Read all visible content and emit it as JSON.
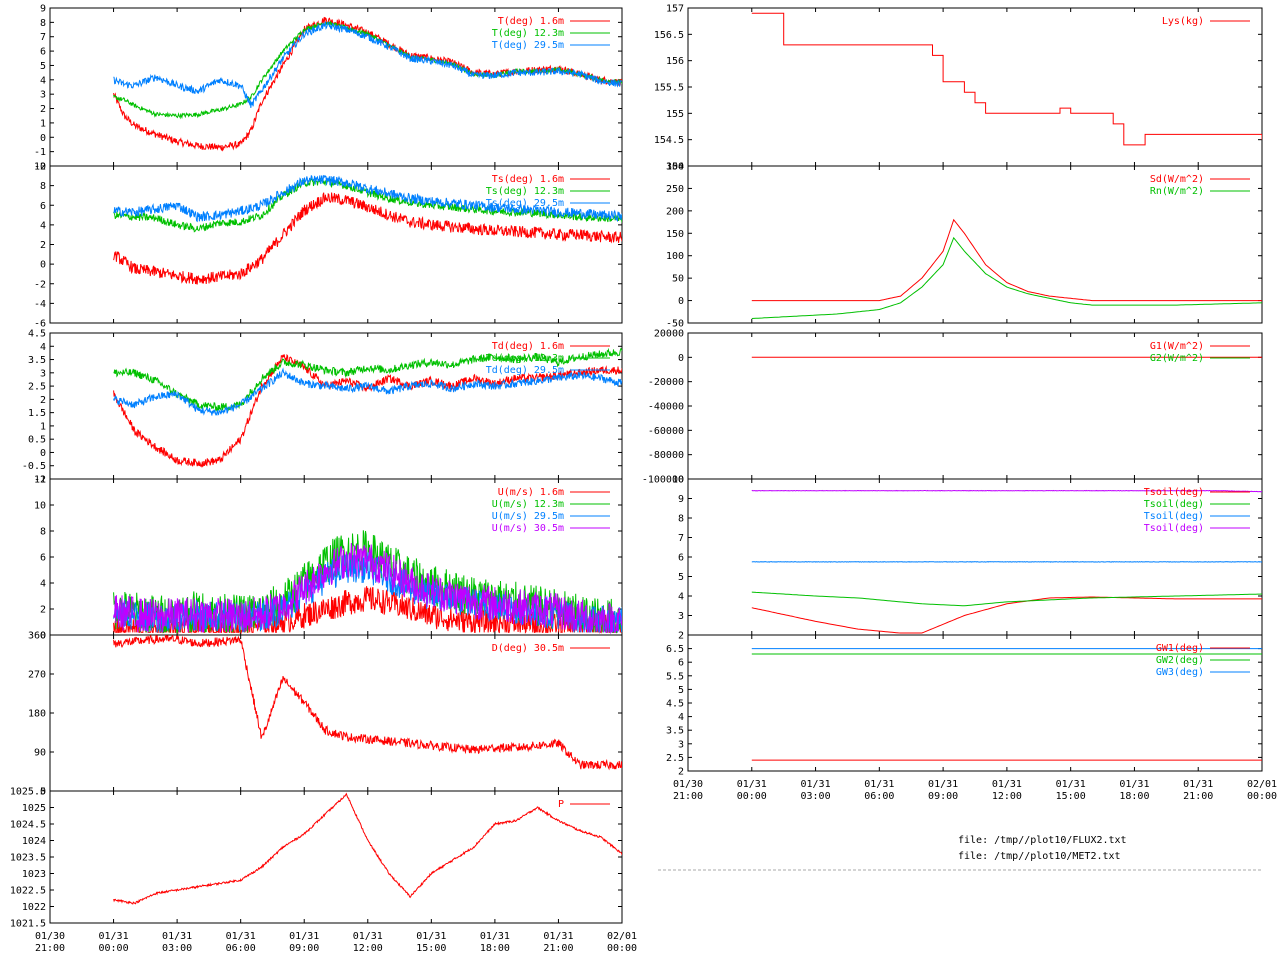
{
  "x_axis": {
    "tick_dates": [
      "01/30",
      "01/31",
      "01/31",
      "01/31",
      "01/31",
      "01/31",
      "01/31",
      "01/31",
      "01/31",
      "02/01"
    ],
    "tick_times": [
      "21:00",
      "00:00",
      "03:00",
      "06:00",
      "09:00",
      "12:00",
      "15:00",
      "18:00",
      "21:00",
      "00:00"
    ]
  },
  "files": [
    "file: /tmp//plot10/FLUX2.txt",
    "file: /tmp//plot10/MET2.txt"
  ],
  "colors": {
    "red": "#ff0000",
    "green": "#00c000",
    "blue": "#0080ff",
    "magenta": "#c000ff"
  },
  "chart_data": [
    {
      "type": "line",
      "name": "T",
      "ylim": [
        -2,
        9
      ],
      "yticks": [
        "-2",
        "-1",
        "0",
        "1",
        "2",
        "3",
        "4",
        "5",
        "6",
        "7",
        "8",
        "9"
      ],
      "legend": [
        "T(deg)  1.6m",
        "T(deg) 12.3m",
        "T(deg) 29.5m"
      ],
      "x_hours": [
        0,
        0.5,
        1,
        2,
        3,
        4,
        5,
        6,
        6.5,
        7,
        8,
        9,
        10,
        11,
        12,
        13,
        14,
        15,
        16,
        17,
        18,
        19,
        20,
        21,
        22,
        23,
        24
      ],
      "series": [
        {
          "color": "red",
          "noise": 0.25,
          "values": [
            3.0,
            1.5,
            0.8,
            0.2,
            -0.3,
            -0.6,
            -0.7,
            -0.5,
            0.5,
            2.5,
            5.0,
            7.5,
            8.2,
            7.8,
            7.3,
            6.5,
            5.7,
            5.5,
            5.2,
            4.5,
            4.4,
            4.6,
            4.7,
            4.8,
            4.4,
            4.0,
            3.8
          ]
        },
        {
          "color": "green",
          "noise": 0.15,
          "values": [
            2.8,
            2.6,
            2.2,
            1.6,
            1.5,
            1.6,
            1.9,
            2.3,
            2.8,
            4.0,
            6.0,
            7.5,
            8.0,
            7.6,
            7.2,
            6.4,
            5.6,
            5.4,
            5.1,
            4.4,
            4.3,
            4.6,
            4.6,
            4.7,
            4.4,
            4.0,
            3.8
          ]
        },
        {
          "color": "blue",
          "noise": 0.25,
          "values": [
            4.0,
            3.7,
            3.6,
            4.2,
            3.6,
            3.2,
            4.0,
            3.6,
            2.2,
            3.3,
            5.5,
            7.2,
            7.8,
            7.5,
            7.0,
            6.3,
            5.5,
            5.3,
            5.0,
            4.3,
            4.3,
            4.5,
            4.5,
            4.6,
            4.4,
            3.9,
            3.7
          ]
        }
      ]
    },
    {
      "type": "line",
      "name": "Ts",
      "ylim": [
        -6,
        10
      ],
      "yticks": [
        "-6",
        "-4",
        "-2",
        "0",
        "2",
        "4",
        "6",
        "8",
        "10"
      ],
      "legend": [
        "Ts(deg)  1.6m",
        "Ts(deg) 12.3m",
        "Ts(deg) 29.5m"
      ],
      "x_hours": [
        0,
        1,
        2,
        3,
        4,
        5,
        6,
        7,
        8,
        9,
        10,
        11,
        12,
        13,
        14,
        15,
        16,
        17,
        18,
        19,
        20,
        21,
        22,
        23,
        24
      ],
      "series": [
        {
          "color": "red",
          "noise": 0.6,
          "values": [
            1.0,
            -0.5,
            -0.8,
            -1.2,
            -1.5,
            -1.3,
            -1.0,
            0.5,
            3.0,
            5.5,
            6.8,
            6.5,
            5.8,
            5.0,
            4.3,
            4.0,
            3.8,
            3.6,
            3.4,
            3.3,
            3.2,
            3.0,
            3.0,
            2.8,
            2.7
          ]
        },
        {
          "color": "green",
          "noise": 0.4,
          "values": [
            5.0,
            4.8,
            4.7,
            4.0,
            3.6,
            4.2,
            4.3,
            5.0,
            7.0,
            8.3,
            8.4,
            8.0,
            7.3,
            6.7,
            6.3,
            6.0,
            5.8,
            5.6,
            5.4,
            5.3,
            5.2,
            5.0,
            4.8,
            4.7,
            4.6
          ]
        },
        {
          "color": "blue",
          "noise": 0.5,
          "values": [
            5.4,
            5.3,
            5.6,
            6.0,
            4.8,
            5.0,
            5.4,
            6.0,
            7.3,
            8.5,
            8.6,
            8.3,
            7.7,
            7.2,
            6.7,
            6.4,
            6.2,
            6.0,
            5.8,
            5.6,
            5.5,
            5.3,
            5.2,
            5.0,
            4.9
          ]
        }
      ]
    },
    {
      "type": "line",
      "name": "Td",
      "ylim": [
        -1,
        4.5
      ],
      "yticks": [
        "-1",
        "-0.5",
        "0",
        "0.5",
        "1",
        "1.5",
        "2",
        "2.5",
        "3",
        "3.5",
        "4",
        "4.5"
      ],
      "legend": [
        "Td(deg)  1.6m",
        "Td(deg) 12.3m",
        "Td(deg) 29.5m"
      ],
      "x_hours": [
        0,
        1,
        2,
        3,
        4,
        5,
        6,
        7,
        8,
        9,
        10,
        11,
        12,
        13,
        14,
        15,
        16,
        17,
        18,
        19,
        20,
        21,
        22,
        23,
        24
      ],
      "series": [
        {
          "color": "red",
          "noise": 0.15,
          "values": [
            2.2,
            0.8,
            0.2,
            -0.3,
            -0.4,
            -0.3,
            0.5,
            2.5,
            3.6,
            3.2,
            2.5,
            2.7,
            2.4,
            2.8,
            2.5,
            2.7,
            2.5,
            2.8,
            2.6,
            2.8,
            2.8,
            2.9,
            3.0,
            3.1,
            3.1
          ]
        },
        {
          "color": "green",
          "noise": 0.15,
          "values": [
            3.0,
            3.0,
            2.7,
            2.2,
            1.8,
            1.7,
            1.8,
            2.8,
            3.4,
            3.3,
            3.1,
            3.0,
            3.2,
            3.1,
            3.3,
            3.4,
            3.3,
            3.5,
            3.6,
            3.5,
            3.6,
            3.4,
            3.6,
            3.7,
            3.8
          ]
        },
        {
          "color": "blue",
          "noise": 0.15,
          "values": [
            2.0,
            1.8,
            2.1,
            2.2,
            1.6,
            1.5,
            1.8,
            2.4,
            3.0,
            2.6,
            2.5,
            2.4,
            2.5,
            2.3,
            2.5,
            2.6,
            2.4,
            2.6,
            2.5,
            2.6,
            2.7,
            2.8,
            2.9,
            2.8,
            2.6
          ]
        }
      ]
    },
    {
      "type": "line",
      "name": "U",
      "ylim": [
        0,
        12
      ],
      "yticks": [
        "0",
        "2",
        "4",
        "6",
        "8",
        "10",
        "12"
      ],
      "legend": [
        "U(m/s)  1.6m",
        "U(m/s) 12.3m",
        "U(m/s) 29.5m",
        "U(m/s) 30.5m"
      ],
      "x_hours": [
        0,
        2,
        4,
        6,
        7,
        8,
        9,
        10,
        11,
        12,
        13,
        14,
        15,
        16,
        17,
        18,
        19,
        20,
        21,
        22,
        23,
        24
      ],
      "series": [
        {
          "color": "red",
          "noise": 1.0,
          "values": [
            0.5,
            0.3,
            0.3,
            0.5,
            0.8,
            1.0,
            1.5,
            2.0,
            2.5,
            2.8,
            2.5,
            2.0,
            1.5,
            1.2,
            1.0,
            1.0,
            0.9,
            0.8,
            0.7,
            0.6,
            0.6,
            0.5
          ]
        },
        {
          "color": "green",
          "noise": 1.6,
          "values": [
            2.0,
            1.5,
            1.8,
            1.5,
            1.8,
            2.5,
            4.0,
            5.5,
            6.5,
            6.5,
            5.5,
            4.5,
            3.8,
            3.5,
            3.0,
            2.8,
            2.5,
            2.2,
            2.0,
            1.5,
            1.3,
            1.2
          ]
        },
        {
          "color": "blue",
          "noise": 1.2,
          "values": [
            1.7,
            1.3,
            1.5,
            1.3,
            1.5,
            2.0,
            3.2,
            4.4,
            5.2,
            5.2,
            4.4,
            3.6,
            3.0,
            2.8,
            2.4,
            2.2,
            2.0,
            1.8,
            1.6,
            1.2,
            1.0,
            1.0
          ]
        },
        {
          "color": "magenta",
          "noise": 1.4,
          "values": [
            1.8,
            1.4,
            1.6,
            1.4,
            1.6,
            2.2,
            3.6,
            5.0,
            5.8,
            5.8,
            5.0,
            4.0,
            3.4,
            3.0,
            2.6,
            2.4,
            2.2,
            2.0,
            1.8,
            1.4,
            1.2,
            1.1
          ]
        }
      ]
    },
    {
      "type": "line",
      "name": "D",
      "ylim": [
        0,
        360
      ],
      "yticks": [
        "0",
        "90",
        "180",
        "270",
        "360"
      ],
      "legend": [
        "D(deg)  30.5m"
      ],
      "x_hours": [
        0,
        1,
        2,
        3,
        4,
        5,
        6,
        7,
        8,
        9,
        10,
        11,
        12,
        13,
        14,
        15,
        16,
        17,
        18,
        19,
        20,
        21,
        22,
        23,
        24
      ],
      "series": [
        {
          "color": "red",
          "noise": 10,
          "values": [
            340,
            345,
            350,
            350,
            340,
            345,
            350,
            120,
            260,
            205,
            140,
            125,
            120,
            115,
            110,
            105,
            100,
            95,
            100,
            100,
            105,
            110,
            60,
            60,
            60
          ]
        }
      ]
    },
    {
      "type": "line",
      "name": "P",
      "ylim": [
        1021.5,
        1025.5
      ],
      "yticks": [
        "1021.5",
        "1022",
        "1022.5",
        "1023",
        "1023.5",
        "1024",
        "1024.5",
        "1025",
        "1025.5"
      ],
      "legend": [
        "P"
      ],
      "x_hours": [
        0,
        1,
        2,
        3,
        4,
        5,
        6,
        7,
        8,
        9,
        10,
        11,
        12,
        13,
        14,
        15,
        16,
        17,
        18,
        19,
        20,
        21,
        22,
        23,
        24
      ],
      "series": [
        {
          "color": "red",
          "noise": 0.03,
          "values": [
            1022.2,
            1022.1,
            1022.4,
            1022.5,
            1022.6,
            1022.7,
            1022.8,
            1023.2,
            1023.8,
            1024.2,
            1024.8,
            1025.4,
            1024.0,
            1023.0,
            1022.3,
            1023.0,
            1023.4,
            1023.8,
            1024.5,
            1024.6,
            1025.0,
            1024.6,
            1024.3,
            1024.1,
            1023.6
          ]
        }
      ]
    },
    {
      "type": "line",
      "name": "Lys",
      "ylim": [
        154,
        157
      ],
      "yticks": [
        "154",
        "154.5",
        "155",
        "155.5",
        "156",
        "156.5",
        "157"
      ],
      "legend": [
        "Lys(kg)"
      ],
      "step": true,
      "x_hours": [
        0,
        0.2,
        1.5,
        1.8,
        8.5,
        9,
        10,
        10.5,
        11,
        13,
        14.5,
        15,
        17,
        17.5,
        18.5,
        24
      ],
      "series": [
        {
          "color": "red",
          "noise": 0,
          "values": [
            156.9,
            156.9,
            156.3,
            156.3,
            156.1,
            155.6,
            155.4,
            155.2,
            155.0,
            155.0,
            155.1,
            155.0,
            154.8,
            154.4,
            154.6,
            154.5
          ]
        }
      ]
    },
    {
      "type": "line",
      "name": "Sd",
      "ylim": [
        -50,
        300
      ],
      "yticks": [
        "-50",
        "0",
        "50",
        "100",
        "150",
        "200",
        "250",
        "300"
      ],
      "legend": [
        "Sd(W/m^2)",
        "Rn(W/m^2)"
      ],
      "x_hours": [
        0,
        4,
        6,
        7,
        8,
        9,
        9.5,
        10,
        11,
        12,
        13,
        14,
        15,
        16,
        18,
        20,
        24
      ],
      "series": [
        {
          "color": "red",
          "noise": 0,
          "values": [
            0,
            0,
            0,
            10,
            50,
            110,
            180,
            150,
            80,
            40,
            20,
            10,
            5,
            0,
            0,
            0,
            0
          ]
        },
        {
          "color": "green",
          "noise": 0,
          "values": [
            -40,
            -30,
            -20,
            -5,
            30,
            80,
            140,
            110,
            60,
            30,
            15,
            5,
            -5,
            -10,
            -10,
            -10,
            -5
          ]
        }
      ]
    },
    {
      "type": "line",
      "name": "G",
      "ylim": [
        -100000,
        20000
      ],
      "yticks": [
        "-100000",
        "-80000",
        "-60000",
        "-40000",
        "-20000",
        "0",
        "20000"
      ],
      "legend": [
        "G1(W/m^2)",
        "G2(W/m^2)"
      ],
      "x_hours": [
        0,
        24
      ],
      "series": [
        {
          "color": "red",
          "noise": 0,
          "values": [
            0,
            0
          ]
        },
        {
          "color": "green",
          "noise": 0,
          "values": [
            -100000,
            -100000
          ]
        }
      ]
    },
    {
      "type": "line",
      "name": "Tsoil",
      "ylim": [
        2,
        10
      ],
      "yticks": [
        "2",
        "3",
        "4",
        "5",
        "6",
        "7",
        "8",
        "9",
        "10"
      ],
      "legend": [
        "Tsoil(deg)",
        "Tsoil(deg)",
        "Tsoil(deg)",
        "Tsoil(deg)"
      ],
      "x_hours": [
        0,
        3,
        5,
        7,
        8,
        10,
        12,
        14,
        16,
        18,
        20,
        22,
        24
      ],
      "series": [
        {
          "color": "red",
          "noise": 0,
          "values": [
            3.4,
            2.7,
            2.3,
            2.1,
            2.1,
            3.0,
            3.6,
            3.9,
            3.95,
            3.9,
            3.85,
            3.85,
            3.85
          ]
        },
        {
          "color": "green",
          "noise": 0,
          "values": [
            4.2,
            4.0,
            3.9,
            3.7,
            3.6,
            3.5,
            3.7,
            3.8,
            3.9,
            3.95,
            4.0,
            4.05,
            4.1
          ]
        },
        {
          "color": "blue",
          "noise": 0.01,
          "values": [
            5.75,
            5.75,
            5.75,
            5.75,
            5.75,
            5.75,
            5.75,
            5.75,
            5.75,
            5.75,
            5.75,
            5.75,
            5.75
          ]
        },
        {
          "color": "magenta",
          "noise": 0.01,
          "values": [
            9.4,
            9.4,
            9.4,
            9.4,
            9.4,
            9.4,
            9.4,
            9.4,
            9.4,
            9.4,
            9.4,
            9.4,
            9.35
          ]
        }
      ]
    },
    {
      "type": "line",
      "name": "GW",
      "ylim": [
        2,
        7
      ],
      "yticks": [
        "2",
        "2.5",
        "3",
        "3.5",
        "4",
        "4.5",
        "5",
        "5.5",
        "6",
        "6.5"
      ],
      "legend": [
        "GW1(deg)",
        "GW2(deg)",
        "GW3(deg)"
      ],
      "x_hours": [
        0,
        24
      ],
      "series": [
        {
          "color": "red",
          "noise": 0,
          "values": [
            2.4,
            2.4
          ]
        },
        {
          "color": "green",
          "noise": 0,
          "values": [
            6.3,
            6.3
          ]
        },
        {
          "color": "blue",
          "noise": 0,
          "values": [
            6.5,
            6.5
          ]
        }
      ]
    }
  ]
}
